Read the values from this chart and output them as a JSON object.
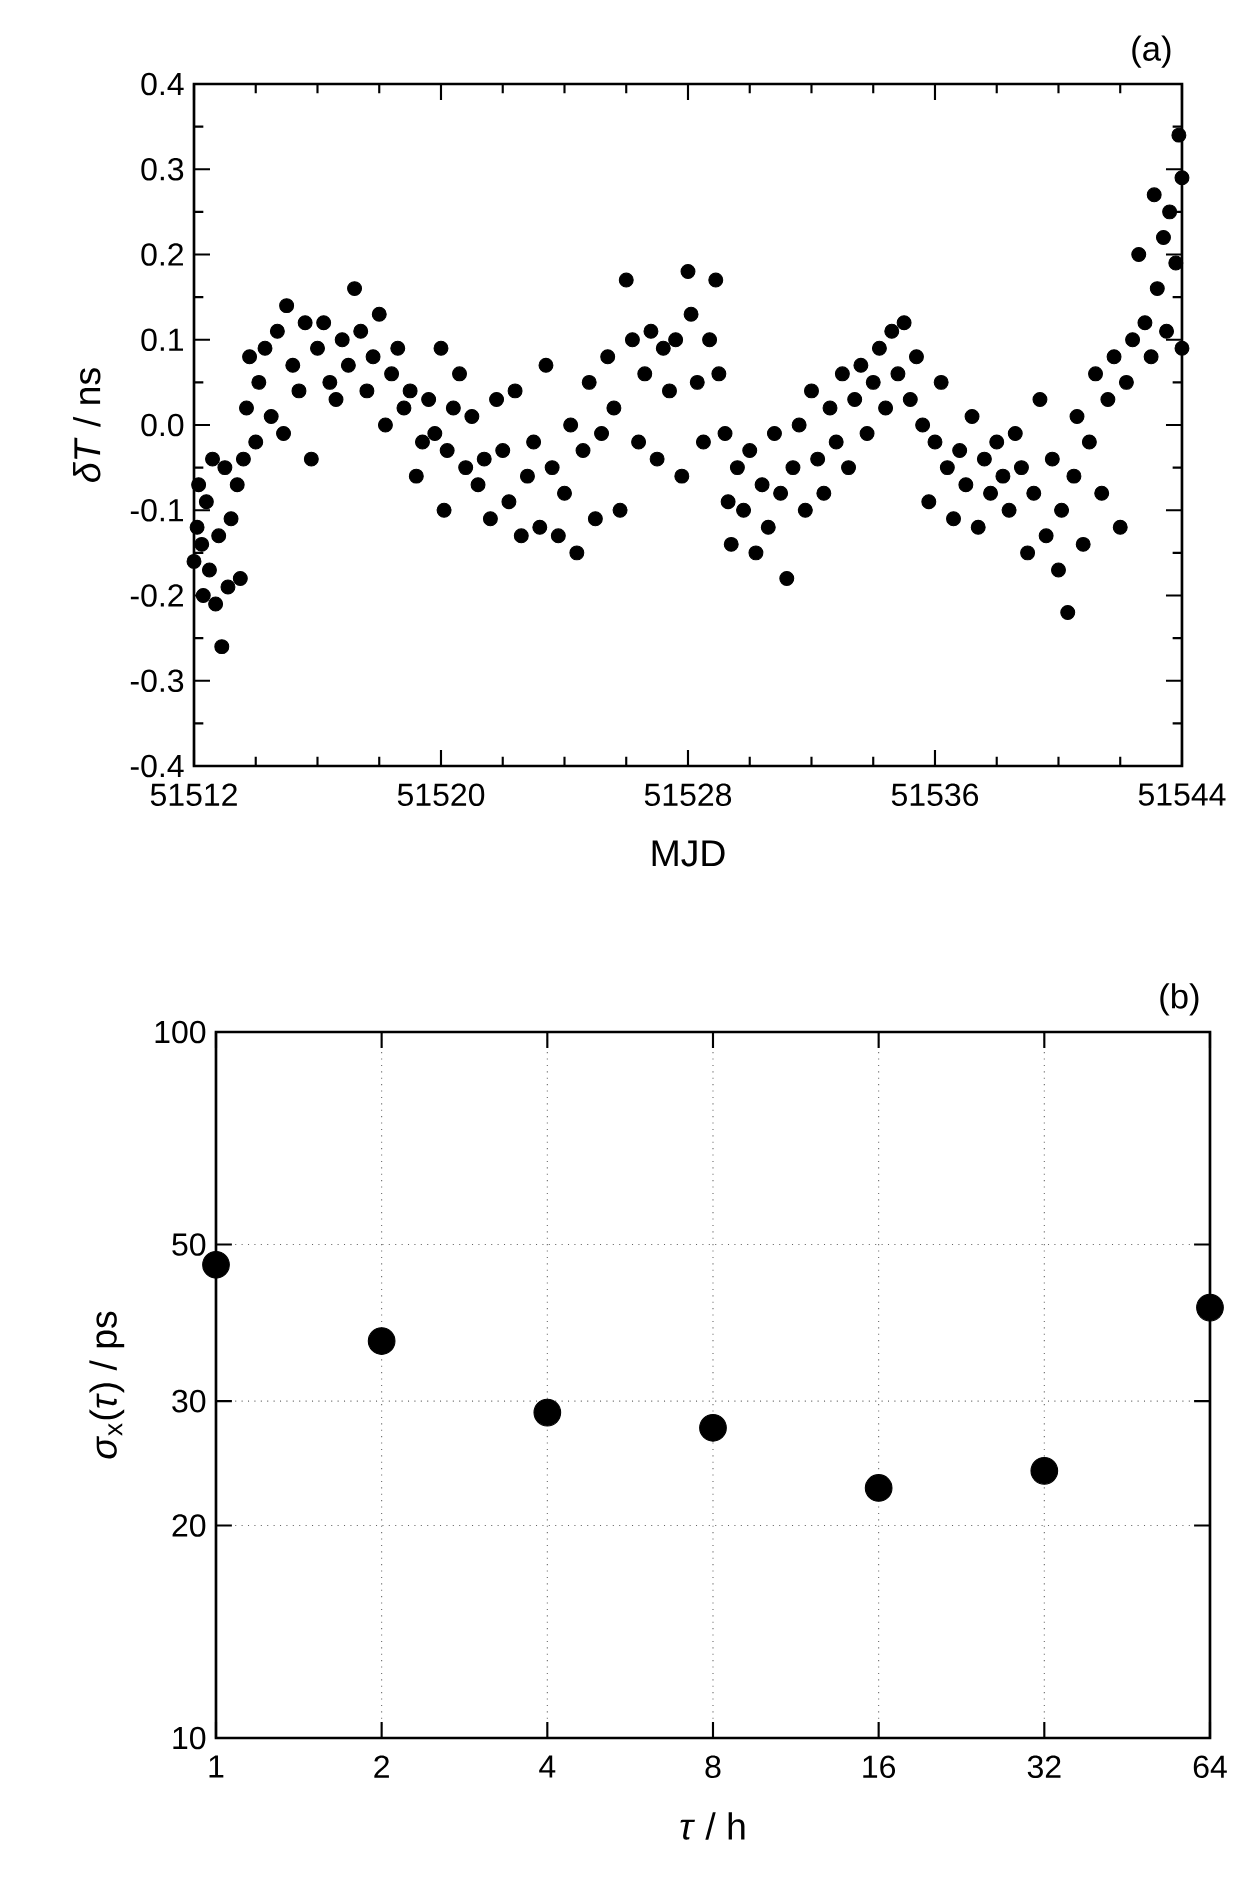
{
  "chart_data": [
    {
      "type": "scatter",
      "xlabel": "MJD",
      "ylabel": "*δT* / ns",
      "annotations": [
        "(a)"
      ],
      "marker": "circle",
      "grid": false,
      "xlim": [
        51512,
        51544
      ],
      "ylim": [
        -0.4,
        0.4
      ],
      "xticks": [
        51512,
        51520,
        51528,
        51536,
        51544
      ],
      "yticks": [
        -0.4,
        -0.3,
        -0.2,
        -0.1,
        {
          "value": 0,
          "label": "0.0"
        },
        0.1,
        0.2,
        0.3,
        0.4
      ],
      "series": [
        {
          "color": "#000000",
          "x": [
            51512.0,
            51512.1,
            51512.15,
            51512.25,
            51512.3,
            51512.4,
            51512.5,
            51512.6,
            51512.7,
            51512.8,
            51512.9,
            51513.0,
            51513.1,
            51513.2,
            51513.4,
            51513.5,
            51513.6,
            51513.7,
            51513.8,
            51514.0,
            51514.1,
            51514.3,
            51514.5,
            51514.7,
            51514.9,
            51515.0,
            51515.2,
            51515.4,
            51515.6,
            51515.8,
            51516.0,
            51516.2,
            51516.4,
            51516.6,
            51516.8,
            51517.0,
            51517.2,
            51517.4,
            51517.6,
            51517.8,
            51518.0,
            51518.2,
            51518.4,
            51518.6,
            51518.8,
            51519.0,
            51519.2,
            51519.4,
            51519.6,
            51519.8,
            51520.0,
            51520.1,
            51520.2,
            51520.4,
            51520.6,
            51520.8,
            51521.0,
            51521.2,
            51521.4,
            51521.6,
            51521.8,
            51522.0,
            51522.2,
            51522.4,
            51522.6,
            51522.8,
            51523.0,
            51523.2,
            51523.4,
            51523.6,
            51523.8,
            51524.0,
            51524.2,
            51524.4,
            51524.6,
            51524.8,
            51525.0,
            51525.2,
            51525.4,
            51525.6,
            51525.8,
            51526.0,
            51526.2,
            51526.4,
            51526.6,
            51526.8,
            51527.0,
            51527.2,
            51527.4,
            51527.6,
            51527.8,
            51528.0,
            51528.1,
            51528.3,
            51528.5,
            51528.7,
            51528.9,
            51529.0,
            51529.2,
            51529.3,
            51529.4,
            51529.6,
            51529.8,
            51530.0,
            51530.2,
            51530.4,
            51530.6,
            51530.8,
            51531.0,
            51531.2,
            51531.4,
            51531.6,
            51531.8,
            51532.0,
            51532.2,
            51532.4,
            51532.6,
            51532.8,
            51533.0,
            51533.2,
            51533.4,
            51533.6,
            51533.8,
            51534.0,
            51534.2,
            51534.4,
            51534.6,
            51534.8,
            51535.0,
            51535.2,
            51535.4,
            51535.6,
            51535.8,
            51536.0,
            51536.2,
            51536.4,
            51536.6,
            51536.8,
            51537.0,
            51537.2,
            51537.4,
            51537.6,
            51537.8,
            51538.0,
            51538.2,
            51538.4,
            51538.6,
            51538.8,
            51539.0,
            51539.2,
            51539.4,
            51539.6,
            51539.8,
            51540.0,
            51540.1,
            51540.3,
            51540.5,
            51540.6,
            51540.8,
            51541.0,
            51541.2,
            51541.4,
            51541.6,
            51541.8,
            51542.0,
            51542.2,
            51542.4,
            51542.6,
            51542.8,
            51543.0,
            51543.1,
            51543.2,
            51543.4,
            51543.5,
            51543.6,
            51543.8,
            51543.9,
            51544.0,
            51544.0
          ],
          "values": [
            -0.16,
            -0.12,
            -0.07,
            -0.14,
            -0.2,
            -0.09,
            -0.17,
            -0.04,
            -0.21,
            -0.13,
            -0.26,
            -0.05,
            -0.19,
            -0.11,
            -0.07,
            -0.18,
            -0.04,
            0.02,
            0.08,
            -0.02,
            0.05,
            0.09,
            0.01,
            0.11,
            -0.01,
            0.14,
            0.07,
            0.04,
            0.12,
            -0.04,
            0.09,
            0.12,
            0.05,
            0.03,
            0.1,
            0.07,
            0.16,
            0.11,
            0.04,
            0.08,
            0.13,
            0.0,
            0.06,
            0.09,
            0.02,
            0.04,
            -0.06,
            -0.02,
            0.03,
            -0.01,
            0.09,
            -0.1,
            -0.03,
            0.02,
            0.06,
            -0.05,
            0.01,
            -0.07,
            -0.04,
            -0.11,
            0.03,
            -0.03,
            -0.09,
            0.04,
            -0.13,
            -0.06,
            -0.02,
            -0.12,
            0.07,
            -0.05,
            -0.13,
            -0.08,
            0.0,
            -0.15,
            -0.03,
            0.05,
            -0.11,
            -0.01,
            0.08,
            0.02,
            -0.1,
            0.17,
            0.1,
            -0.02,
            0.06,
            0.11,
            -0.04,
            0.09,
            0.04,
            0.1,
            -0.06,
            0.18,
            0.13,
            0.05,
            -0.02,
            0.1,
            0.17,
            0.06,
            -0.01,
            -0.09,
            -0.14,
            -0.05,
            -0.1,
            -0.03,
            -0.15,
            -0.07,
            -0.12,
            -0.01,
            -0.08,
            -0.18,
            -0.05,
            0.0,
            -0.1,
            0.04,
            -0.04,
            -0.08,
            0.02,
            -0.02,
            0.06,
            -0.05,
            0.03,
            0.07,
            -0.01,
            0.05,
            0.09,
            0.02,
            0.11,
            0.06,
            0.12,
            0.03,
            0.08,
            0.0,
            -0.09,
            -0.02,
            0.05,
            -0.05,
            -0.11,
            -0.03,
            -0.07,
            0.01,
            -0.12,
            -0.04,
            -0.08,
            -0.02,
            -0.06,
            -0.1,
            -0.01,
            -0.05,
            -0.15,
            -0.08,
            0.03,
            -0.13,
            -0.04,
            -0.17,
            -0.1,
            -0.22,
            -0.06,
            0.01,
            -0.14,
            -0.02,
            0.06,
            -0.08,
            0.03,
            0.08,
            -0.12,
            0.05,
            0.1,
            0.2,
            0.12,
            0.08,
            0.27,
            0.16,
            0.22,
            0.11,
            0.25,
            0.19,
            0.34,
            0.09,
            0.29
          ]
        }
      ]
    },
    {
      "type": "scatter",
      "xlabel": "*τ* / h",
      "ylabel": "*σ*$_{x}$(*τ*) / ps",
      "annotations": [
        "(b)"
      ],
      "marker": "circle",
      "grid": true,
      "log": "xy",
      "xlim": [
        1,
        64
      ],
      "ylim": [
        10,
        100
      ],
      "xticks": [
        1,
        2,
        4,
        8,
        16,
        32,
        64
      ],
      "yticks": [
        10,
        20,
        30,
        50,
        100
      ],
      "series": [
        {
          "color": "#000000",
          "x": [
            1,
            2,
            4,
            8,
            16,
            32,
            64
          ],
          "values": [
            46.8,
            36.5,
            28.9,
            27.5,
            22.6,
            23.9,
            40.7
          ]
        }
      ]
    }
  ]
}
